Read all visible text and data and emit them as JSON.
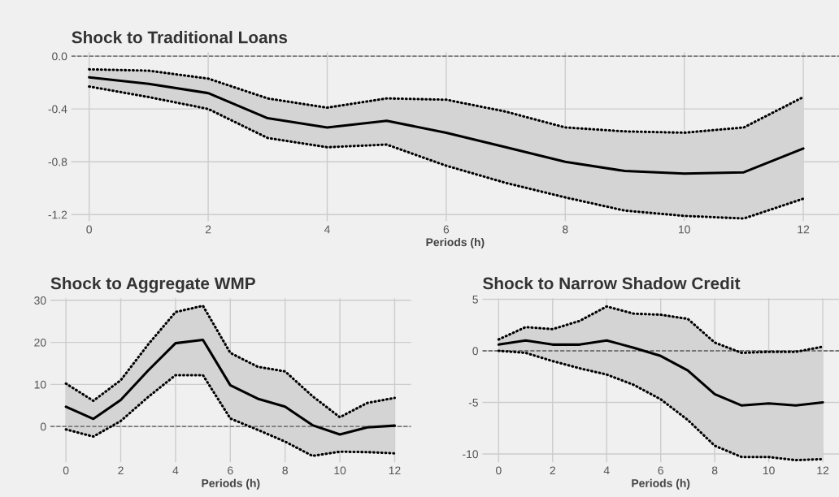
{
  "chart_data": [
    {
      "type": "line",
      "title": "Shock to Traditional Loans",
      "xlabel": "Periods (h)",
      "x": [
        0,
        1,
        2,
        3,
        4,
        5,
        6,
        7,
        8,
        9,
        10,
        11,
        12
      ],
      "xlim": [
        -0.3,
        12.6
      ],
      "xticks": [
        0,
        2,
        4,
        6,
        8,
        10,
        12
      ],
      "ylim": [
        -1.25,
        0.03
      ],
      "yticks": [
        {
          "value": 0,
          "label": "0.0"
        },
        -0.4,
        -0.8,
        -1.2
      ],
      "grid": true,
      "line_style": "solid",
      "series": [
        {
          "color": "#000000",
          "values": [
            -0.16,
            -0.21,
            -0.28,
            -0.47,
            -0.54,
            -0.49,
            -0.58,
            -0.69,
            -0.8,
            -0.87,
            -0.89,
            -0.88,
            -0.7
          ],
          "upper": [
            -0.1,
            -0.11,
            -0.17,
            -0.32,
            -0.39,
            -0.32,
            -0.33,
            -0.42,
            -0.54,
            -0.57,
            -0.58,
            -0.54,
            -0.31
          ],
          "lower": [
            -0.23,
            -0.31,
            -0.4,
            -0.62,
            -0.69,
            -0.67,
            -0.83,
            -0.96,
            -1.07,
            -1.17,
            -1.21,
            -1.23,
            -1.08
          ]
        },
        {
          "color": "#000000",
          "line_style": "dotted",
          "values": [
            -0.1,
            -0.11,
            -0.17,
            -0.32,
            -0.39,
            -0.32,
            -0.33,
            -0.42,
            -0.54,
            -0.57,
            -0.58,
            -0.54,
            -0.31
          ]
        },
        {
          "color": "#000000",
          "line_style": "dotted",
          "values": [
            -0.23,
            -0.31,
            -0.4,
            -0.62,
            -0.69,
            -0.67,
            -0.83,
            -0.96,
            -1.07,
            -1.17,
            -1.21,
            -1.23,
            -1.08
          ]
        }
      ],
      "ref_lines": [
        {
          "axis": "y",
          "value": 0,
          "color": "#555555",
          "line_style": "dashed"
        }
      ]
    },
    {
      "type": "line",
      "title": "Shock to Aggregate WMP",
      "xlabel": "Periods (h)",
      "x": [
        0,
        1,
        2,
        3,
        4,
        5,
        6,
        7,
        8,
        9,
        10,
        11,
        12
      ],
      "xlim": [
        -0.57,
        12.6
      ],
      "xticks": [
        0,
        2,
        4,
        6,
        8,
        10,
        12
      ],
      "ylim": [
        -8.5,
        30.5
      ],
      "yticks": [
        0,
        10,
        20,
        30
      ],
      "grid": true,
      "line_style": "solid",
      "series": [
        {
          "color": "#000000",
          "values": [
            4.7,
            1.8,
            6.3,
            13.3,
            19.8,
            20.6,
            9.8,
            6.6,
            4.7,
            0.3,
            -1.9,
            -0.2,
            0.2
          ],
          "upper": [
            10.2,
            6.1,
            11.0,
            19.5,
            27.2,
            28.7,
            17.5,
            14.2,
            13.1,
            7.2,
            2.2,
            5.6,
            6.8
          ],
          "lower": [
            -0.7,
            -2.4,
            1.3,
            7.0,
            12.2,
            12.2,
            1.9,
            -0.8,
            -3.6,
            -7.0,
            -6.0,
            -6.1,
            -6.4
          ]
        },
        {
          "color": "#000000",
          "line_style": "dotted",
          "values": [
            10.2,
            6.1,
            11.0,
            19.5,
            27.2,
            28.7,
            17.5,
            14.2,
            13.1,
            7.2,
            2.2,
            5.6,
            6.8
          ]
        },
        {
          "color": "#000000",
          "line_style": "dotted",
          "values": [
            -0.7,
            -2.4,
            1.3,
            7.0,
            12.2,
            12.2,
            1.9,
            -0.8,
            -3.6,
            -7.0,
            -6.0,
            -6.1,
            -6.4
          ]
        }
      ],
      "ref_lines": [
        {
          "axis": "y",
          "value": 0,
          "color": "#555555",
          "line_style": "dashed"
        }
      ]
    },
    {
      "type": "line",
      "title": "Shock to Narrow Shadow Credit",
      "xlabel": "Periods (h)",
      "x": [
        0,
        1,
        2,
        3,
        4,
        5,
        6,
        7,
        8,
        9,
        10,
        11,
        12
      ],
      "xlim": [
        -0.6,
        12.6
      ],
      "xticks": [
        0,
        2,
        4,
        6,
        8,
        10,
        12
      ],
      "ylim": [
        -10.8,
        5.1
      ],
      "yticks": [
        -10,
        -5,
        0,
        5
      ],
      "grid": true,
      "line_style": "solid",
      "series": [
        {
          "color": "#000000",
          "values": [
            0.6,
            1.0,
            0.6,
            0.6,
            1.0,
            0.3,
            -0.5,
            -1.9,
            -4.2,
            -5.3,
            -5.1,
            -5.3,
            -5.0
          ],
          "upper": [
            1.1,
            2.3,
            2.1,
            2.9,
            4.3,
            3.6,
            3.5,
            3.1,
            0.8,
            -0.2,
            -0.1,
            -0.1,
            0.4
          ],
          "lower": [
            0.0,
            -0.2,
            -1.0,
            -1.7,
            -2.3,
            -3.3,
            -4.7,
            -6.7,
            -9.2,
            -10.3,
            -10.3,
            -10.6,
            -10.5
          ]
        },
        {
          "color": "#000000",
          "line_style": "dotted",
          "values": [
            1.1,
            2.3,
            2.1,
            2.9,
            4.3,
            3.6,
            3.5,
            3.1,
            0.8,
            -0.2,
            -0.1,
            -0.1,
            0.4
          ]
        },
        {
          "color": "#000000",
          "line_style": "dotted",
          "values": [
            0.0,
            -0.2,
            -1.0,
            -1.7,
            -2.3,
            -3.3,
            -4.7,
            -6.7,
            -9.2,
            -10.3,
            -10.3,
            -10.6,
            -10.5
          ]
        }
      ],
      "ref_lines": [
        {
          "axis": "y",
          "value": 0,
          "color": "#555555",
          "line_style": "dashed"
        }
      ]
    }
  ]
}
